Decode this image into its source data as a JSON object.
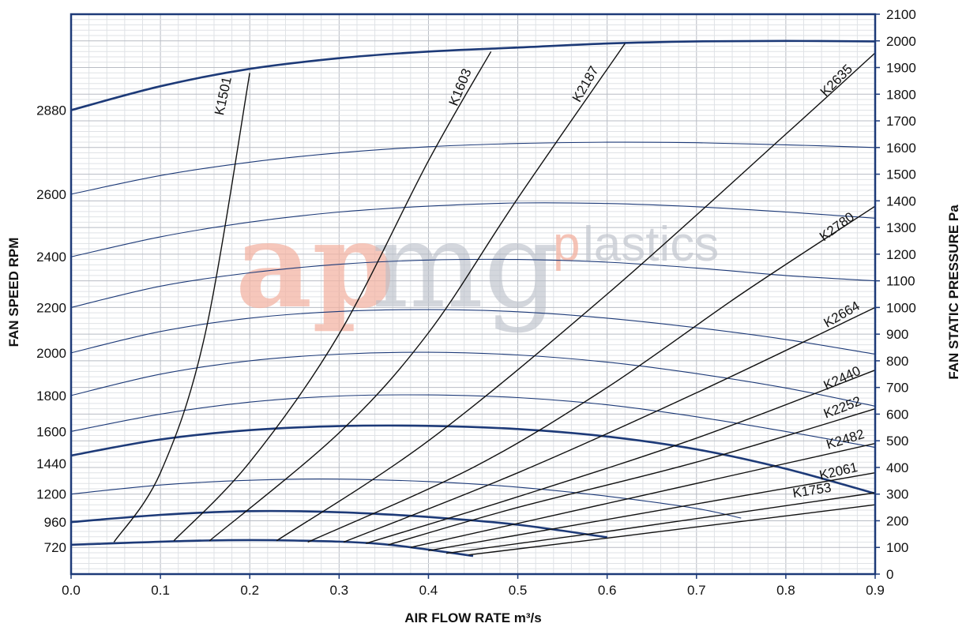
{
  "chart_data": {
    "type": "line",
    "title": "",
    "xlabel": "AIR FLOW RATE m³/s",
    "ylabel_left": "FAN SPEED RPM",
    "ylabel_right": "FAN STATIC PRESSURE Pa",
    "xlim": [
      0,
      0.9
    ],
    "ylim": [
      0,
      2100
    ],
    "x_ticks": [
      "0.0",
      "0.1",
      "0.2",
      "0.3",
      "0.4",
      "0.5",
      "0.6",
      "0.7",
      "0.8",
      "0.9"
    ],
    "right_ticks": [
      "0",
      "100",
      "200",
      "300",
      "400",
      "500",
      "600",
      "700",
      "800",
      "900",
      "1000",
      "1100",
      "1200",
      "1300",
      "1400",
      "1500",
      "1600",
      "1700",
      "1800",
      "1900",
      "2000",
      "2100"
    ],
    "left_ticks": [
      {
        "label": "720",
        "pa": 100
      },
      {
        "label": "960",
        "pa": 195
      },
      {
        "label": "1200",
        "pa": 300
      },
      {
        "label": "1440",
        "pa": 415
      },
      {
        "label": "1600",
        "pa": 535
      },
      {
        "label": "1800",
        "pa": 670
      },
      {
        "label": "2000",
        "pa": 830
      },
      {
        "label": "2200",
        "pa": 1000
      },
      {
        "label": "2400",
        "pa": 1190
      },
      {
        "label": "2600",
        "pa": 1425
      },
      {
        "label": "2880",
        "pa": 1740
      }
    ],
    "grid": true,
    "watermark": {
      "part1": "ap",
      "part2": "mg",
      "part3": "p",
      "part4": "lastics"
    },
    "fan_curves": [
      {
        "rpm": "720",
        "bold": true,
        "points": [
          [
            0,
            110
          ],
          [
            0.15,
            126
          ],
          [
            0.25,
            126
          ],
          [
            0.35,
            112
          ],
          [
            0.45,
            68
          ]
        ]
      },
      {
        "rpm": "960",
        "bold": true,
        "points": [
          [
            0,
            195
          ],
          [
            0.1,
            222
          ],
          [
            0.2,
            236
          ],
          [
            0.3,
            232
          ],
          [
            0.4,
            214
          ],
          [
            0.5,
            185
          ],
          [
            0.6,
            138
          ]
        ]
      },
      {
        "rpm": "1200",
        "bold": false,
        "points": [
          [
            0,
            300
          ],
          [
            0.1,
            334
          ],
          [
            0.2,
            352
          ],
          [
            0.3,
            356
          ],
          [
            0.4,
            347
          ],
          [
            0.5,
            326
          ],
          [
            0.6,
            292
          ],
          [
            0.7,
            246
          ],
          [
            0.75,
            210
          ]
        ]
      },
      {
        "rpm": "1440",
        "bold": true,
        "points": [
          [
            0,
            445
          ],
          [
            0.1,
            505
          ],
          [
            0.2,
            540
          ],
          [
            0.3,
            555
          ],
          [
            0.4,
            556
          ],
          [
            0.5,
            544
          ],
          [
            0.6,
            516
          ],
          [
            0.7,
            468
          ],
          [
            0.8,
            395
          ],
          [
            0.9,
            302
          ]
        ]
      },
      {
        "rpm": "1600",
        "bold": false,
        "points": [
          [
            0,
            535
          ],
          [
            0.1,
            600
          ],
          [
            0.2,
            645
          ],
          [
            0.3,
            668
          ],
          [
            0.4,
            672
          ],
          [
            0.5,
            662
          ],
          [
            0.6,
            635
          ],
          [
            0.7,
            590
          ],
          [
            0.8,
            535
          ],
          [
            0.9,
            475
          ]
        ]
      },
      {
        "rpm": "1800",
        "bold": false,
        "points": [
          [
            0,
            670
          ],
          [
            0.1,
            750
          ],
          [
            0.2,
            800
          ],
          [
            0.3,
            825
          ],
          [
            0.4,
            832
          ],
          [
            0.5,
            822
          ],
          [
            0.6,
            795
          ],
          [
            0.7,
            752
          ],
          [
            0.8,
            698
          ],
          [
            0.9,
            630
          ]
        ]
      },
      {
        "rpm": "2000",
        "bold": false,
        "points": [
          [
            0,
            830
          ],
          [
            0.1,
            910
          ],
          [
            0.2,
            960
          ],
          [
            0.3,
            985
          ],
          [
            0.4,
            992
          ],
          [
            0.5,
            984
          ],
          [
            0.6,
            960
          ],
          [
            0.7,
            924
          ],
          [
            0.8,
            880
          ],
          [
            0.9,
            825
          ]
        ]
      },
      {
        "rpm": "2200",
        "bold": false,
        "points": [
          [
            0,
            1000
          ],
          [
            0.1,
            1080
          ],
          [
            0.2,
            1130
          ],
          [
            0.3,
            1162
          ],
          [
            0.4,
            1178
          ],
          [
            0.5,
            1180
          ],
          [
            0.6,
            1170
          ],
          [
            0.7,
            1148
          ],
          [
            0.8,
            1120
          ],
          [
            0.9,
            1100
          ]
        ]
      },
      {
        "rpm": "2400",
        "bold": false,
        "points": [
          [
            0,
            1190
          ],
          [
            0.1,
            1265
          ],
          [
            0.2,
            1320
          ],
          [
            0.3,
            1358
          ],
          [
            0.4,
            1380
          ],
          [
            0.5,
            1392
          ],
          [
            0.6,
            1390
          ],
          [
            0.7,
            1378
          ],
          [
            0.8,
            1358
          ],
          [
            0.9,
            1335
          ]
        ]
      },
      {
        "rpm": "2600",
        "bold": false,
        "points": [
          [
            0,
            1425
          ],
          [
            0.1,
            1495
          ],
          [
            0.2,
            1545
          ],
          [
            0.3,
            1580
          ],
          [
            0.4,
            1603
          ],
          [
            0.5,
            1615
          ],
          [
            0.6,
            1620
          ],
          [
            0.7,
            1618
          ],
          [
            0.8,
            1610
          ],
          [
            0.9,
            1600
          ]
        ]
      },
      {
        "rpm": "2880",
        "bold": true,
        "points": [
          [
            0,
            1740
          ],
          [
            0.1,
            1830
          ],
          [
            0.2,
            1895
          ],
          [
            0.3,
            1935
          ],
          [
            0.4,
            1960
          ],
          [
            0.5,
            1975
          ],
          [
            0.6,
            1990
          ],
          [
            0.7,
            1998
          ],
          [
            0.8,
            2000
          ],
          [
            0.9,
            1998
          ]
        ]
      }
    ],
    "system_curves": [
      {
        "name": "K1501",
        "points": [
          [
            0.048,
            120
          ],
          [
            0.1,
            380
          ],
          [
            0.15,
            900
          ],
          [
            0.2,
            1880
          ]
        ],
        "label_xy": [
          0.175,
          1790
        ],
        "angle": -78
      },
      {
        "name": "K1603",
        "points": [
          [
            0.115,
            125
          ],
          [
            0.2,
            420
          ],
          [
            0.3,
            900
          ],
          [
            0.4,
            1550
          ],
          [
            0.47,
            1960
          ]
        ],
        "label_xy": [
          0.44,
          1820
        ],
        "angle": -68
      },
      {
        "name": "K2187",
        "points": [
          [
            0.155,
            125
          ],
          [
            0.3,
            530
          ],
          [
            0.4,
            905
          ],
          [
            0.5,
            1410
          ],
          [
            0.62,
            1990
          ]
        ],
        "label_xy": [
          0.58,
          1830
        ],
        "angle": -60
      },
      {
        "name": "K2635",
        "points": [
          [
            0.23,
            125
          ],
          [
            0.4,
            500
          ],
          [
            0.6,
            1050
          ],
          [
            0.8,
            1650
          ],
          [
            0.9,
            1955
          ]
        ],
        "label_xy": [
          0.86,
          1840
        ],
        "angle": -45
      },
      {
        "name": "K2780",
        "points": [
          [
            0.265,
            120
          ],
          [
            0.45,
            400
          ],
          [
            0.6,
            700
          ],
          [
            0.75,
            1050
          ],
          [
            0.9,
            1380
          ]
        ],
        "label_xy": [
          0.86,
          1290
        ],
        "angle": -36
      },
      {
        "name": "K2664",
        "points": [
          [
            0.305,
            120
          ],
          [
            0.5,
            380
          ],
          [
            0.7,
            680
          ],
          [
            0.9,
            1000
          ]
        ],
        "label_xy": [
          0.865,
          960
        ],
        "angle": -30
      },
      {
        "name": "K2440",
        "points": [
          [
            0.33,
            115
          ],
          [
            0.5,
            290
          ],
          [
            0.7,
            510
          ],
          [
            0.9,
            765
          ]
        ],
        "label_xy": [
          0.865,
          720
        ],
        "angle": -25
      },
      {
        "name": "K2252",
        "points": [
          [
            0.355,
            110
          ],
          [
            0.5,
            250
          ],
          [
            0.7,
            420
          ],
          [
            0.9,
            620
          ]
        ],
        "label_xy": [
          0.865,
          610
        ],
        "angle": -21
      },
      {
        "name": "K2482",
        "points": [
          [
            0.38,
            100
          ],
          [
            0.6,
            265
          ],
          [
            0.9,
            490
          ]
        ],
        "label_xy": [
          0.868,
          490
        ],
        "angle": -17
      },
      {
        "name": "K2061",
        "points": [
          [
            0.4,
            88
          ],
          [
            0.6,
            205
          ],
          [
            0.9,
            380
          ]
        ],
        "label_xy": [
          0.86,
          370
        ],
        "angle": -13
      },
      {
        "name": "K1753",
        "points": [
          [
            0.42,
            78
          ],
          [
            0.6,
            160
          ],
          [
            0.9,
            305
          ]
        ],
        "label_xy": [
          0.83,
          298
        ],
        "angle": -9
      },
      {
        "name": "",
        "points": [
          [
            0.445,
            72
          ],
          [
            0.6,
            135
          ],
          [
            0.9,
            260
          ]
        ],
        "label_xy": null,
        "angle": 0
      }
    ]
  }
}
